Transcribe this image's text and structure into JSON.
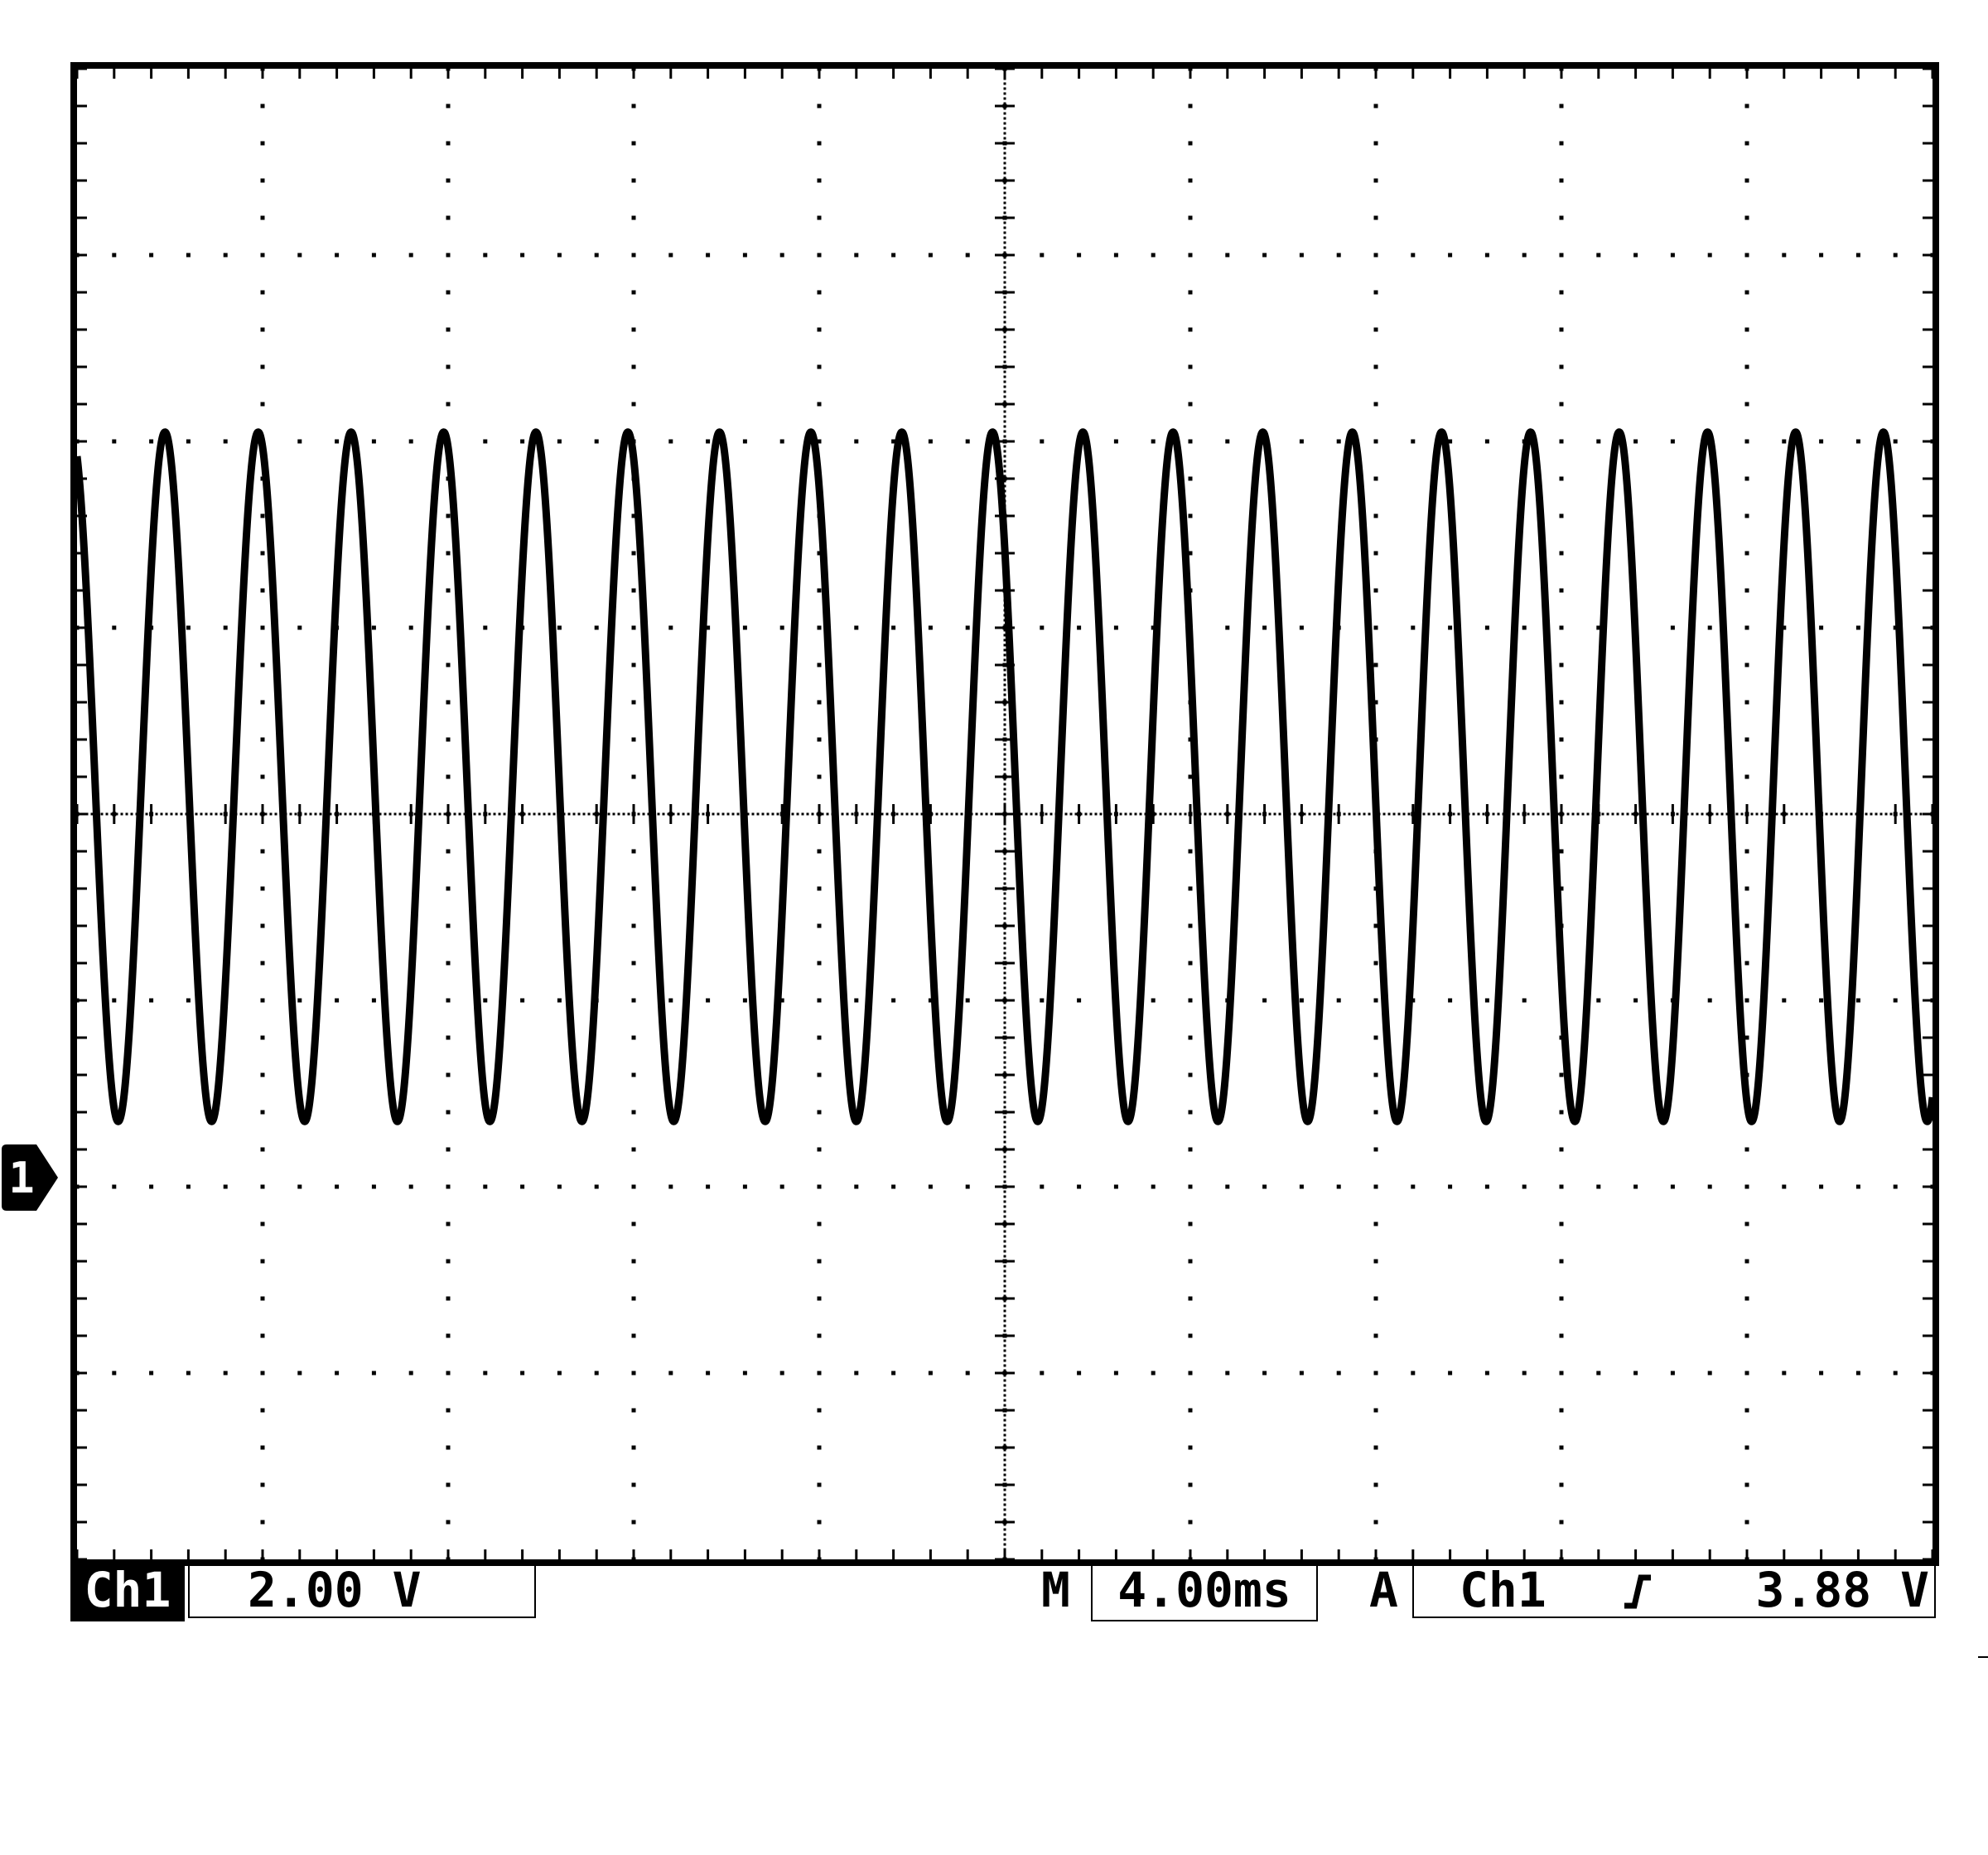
{
  "channel": {
    "label": "Ch1",
    "marker": "1"
  },
  "vertical": {
    "scale": "2.00 V"
  },
  "horizontal": {
    "prefix": "M",
    "timebase": "4.00ms"
  },
  "trigger": {
    "mode": "A",
    "source": "Ch1",
    "slope_icon": "rising-edge-icon",
    "level": "3.88 V"
  },
  "display": {
    "divisions_x": 10,
    "divisions_y": 8,
    "grid": true
  },
  "chart_data": {
    "type": "line",
    "xlabel": "",
    "ylabel": "",
    "x_unit": "ms",
    "y_unit": "V",
    "xlim": [
      0,
      40
    ],
    "ylim": [
      -4,
      12
    ],
    "series": [
      {
        "description": "chirp sine",
        "offset_v": 4.4,
        "amplitude_v": 3.7,
        "cycles_in_window": 20.5,
        "start_frequency_hz": 495,
        "end_frequency_hz": 530
      }
    ]
  }
}
